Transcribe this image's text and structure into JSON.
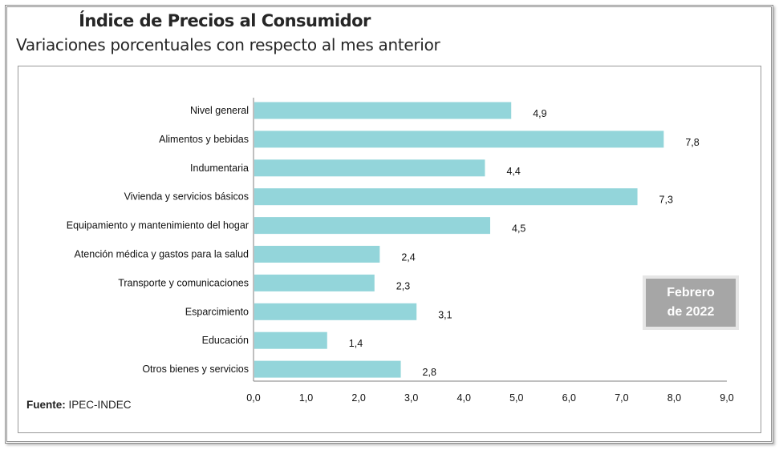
{
  "chart_data": {
    "type": "bar",
    "orientation": "horizontal",
    "title": "Índice de Precios al Consumidor",
    "subtitle": "Variaciones porcentuales con respecto al mes anterior",
    "categories": [
      "Nivel  general",
      "Alimentos y bebidas",
      "Indumentaria",
      "Vivienda y servicios básicos",
      "Equipamiento  y  mantenimiento del hogar",
      "Atención médica y gastos para la salud",
      "Transporte  y comunicaciones",
      "Esparcimiento",
      "Educación",
      "Otros bienes y servicios"
    ],
    "values": [
      4.9,
      7.8,
      4.4,
      7.3,
      4.5,
      2.4,
      2.3,
      3.1,
      1.4,
      2.8
    ],
    "data_labels": [
      "4,9",
      "7,8",
      "4,4",
      "7,3",
      "4,5",
      "2,4",
      "2,3",
      "3,1",
      "1,4",
      "2,8"
    ],
    "xlim": [
      0,
      9
    ],
    "x_ticks": [
      "0,0",
      "1,0",
      "2,0",
      "3,0",
      "4,0",
      "5,0",
      "6,0",
      "7,0",
      "8,0",
      "9,0"
    ],
    "xlabel": "",
    "ylabel": "",
    "grid": false,
    "bar_color": "#93d5da"
  },
  "source": {
    "label": "Fuente:",
    "value": "IPEC-INDEC"
  },
  "badge": {
    "line1": "Febrero",
    "line2": "de 2022"
  }
}
